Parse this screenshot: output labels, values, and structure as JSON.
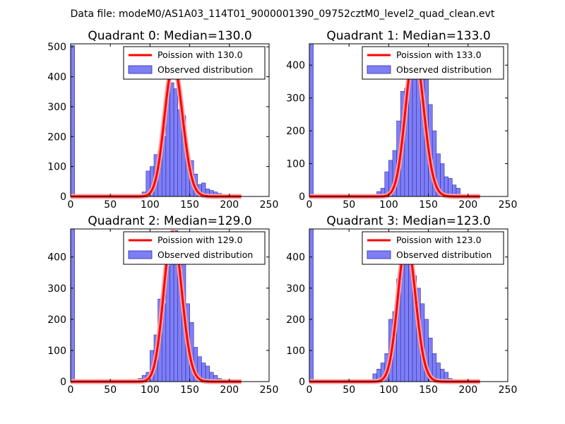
{
  "title": "Data file: modeM0/AS1A03_114T01_9000001390_09752cztM0_level2_quad_clean.evt",
  "colors": {
    "bar_fill": "#7f7ff5",
    "bar_edge": "#2a2ab0",
    "curve": "#ff0000",
    "curve_highlight": "#f7a3a3",
    "axis": "#000000"
  },
  "chart_data": [
    {
      "type": "bar",
      "title": "Quadrant 0: Median=130.0",
      "xlim": [
        0,
        250
      ],
      "ylim": [
        0,
        510
      ],
      "xticks": [
        "0",
        "50",
        "100",
        "150",
        "200",
        "250"
      ],
      "yticks": [
        "0",
        "100",
        "200",
        "300",
        "400",
        "500"
      ],
      "ytick_values": [
        0,
        100,
        200,
        300,
        400,
        500
      ],
      "bin_width": 5,
      "bin_starts": [
        0,
        85,
        90,
        95,
        100,
        105,
        110,
        115,
        120,
        125,
        130,
        135,
        140,
        145,
        150,
        155,
        160,
        165,
        170,
        175,
        180,
        185,
        190,
        195,
        200,
        205,
        210
      ],
      "values": [
        505,
        5,
        15,
        85,
        100,
        140,
        150,
        200,
        360,
        380,
        360,
        290,
        270,
        140,
        120,
        75,
        40,
        45,
        25,
        20,
        15,
        10,
        5,
        5,
        3,
        2,
        1
      ],
      "poisson_mean": 130,
      "poisson_peak": 440,
      "legend": [
        "Poission with 130.0",
        "Observed distribution"
      ]
    },
    {
      "type": "bar",
      "title": "Quadrant 1: Median=133.0",
      "xlim": [
        0,
        250
      ],
      "ylim": [
        0,
        465
      ],
      "xticks": [
        "0",
        "50",
        "100",
        "150",
        "200",
        "250"
      ],
      "yticks": [
        "0",
        "100",
        "200",
        "300",
        "400"
      ],
      "ytick_values": [
        0,
        100,
        200,
        300,
        400
      ],
      "bin_width": 5,
      "bin_starts": [
        0,
        80,
        85,
        90,
        95,
        100,
        105,
        110,
        115,
        120,
        125,
        130,
        135,
        140,
        145,
        150,
        155,
        160,
        165,
        170,
        175,
        180,
        185,
        190,
        195,
        200
      ],
      "values": [
        465,
        5,
        15,
        25,
        75,
        110,
        140,
        230,
        320,
        330,
        395,
        430,
        420,
        380,
        360,
        280,
        200,
        130,
        100,
        60,
        55,
        35,
        25,
        5,
        3,
        2
      ],
      "poisson_mean": 133,
      "poisson_peak": 440,
      "legend": [
        "Poission with 133.0",
        "Observed distribution"
      ]
    },
    {
      "type": "bar",
      "title": "Quadrant 2: Median=129.0",
      "xlim": [
        0,
        250
      ],
      "ylim": [
        0,
        490
      ],
      "xticks": [
        "0",
        "50",
        "100",
        "150",
        "200",
        "250"
      ],
      "yticks": [
        "0",
        "100",
        "200",
        "300",
        "400"
      ],
      "ytick_values": [
        0,
        100,
        200,
        300,
        400
      ],
      "bin_width": 5,
      "bin_starts": [
        0,
        80,
        85,
        90,
        95,
        100,
        105,
        110,
        115,
        120,
        125,
        130,
        135,
        140,
        145,
        150,
        155,
        160,
        165,
        170,
        175,
        180,
        185,
        190,
        195,
        200
      ],
      "values": [
        490,
        3,
        10,
        20,
        30,
        100,
        150,
        265,
        250,
        370,
        470,
        485,
        440,
        390,
        250,
        190,
        110,
        80,
        60,
        50,
        30,
        20,
        10,
        5,
        3,
        1
      ],
      "poisson_mean": 129,
      "poisson_peak": 480,
      "legend": [
        "Poission with 129.0",
        "Observed distribution"
      ]
    },
    {
      "type": "bar",
      "title": "Quadrant 3: Median=123.0",
      "xlim": [
        0,
        250
      ],
      "ylim": [
        0,
        490
      ],
      "xticks": [
        "0",
        "50",
        "100",
        "150",
        "200",
        "250"
      ],
      "yticks": [
        "0",
        "100",
        "200",
        "300",
        "400"
      ],
      "ytick_values": [
        0,
        100,
        200,
        300,
        400
      ],
      "bin_width": 5,
      "bin_starts": [
        0,
        20,
        30,
        45,
        60,
        75,
        80,
        85,
        90,
        95,
        100,
        105,
        110,
        115,
        120,
        125,
        130,
        135,
        140,
        145,
        150,
        155,
        160,
        165,
        170,
        175,
        180,
        185,
        190
      ],
      "values": [
        490,
        5,
        5,
        3,
        3,
        5,
        25,
        40,
        60,
        90,
        200,
        225,
        330,
        395,
        430,
        395,
        340,
        300,
        250,
        200,
        140,
        90,
        60,
        40,
        30,
        10,
        5,
        3,
        2
      ],
      "poisson_mean": 123,
      "poisson_peak": 450,
      "legend": [
        "Poission with 123.0",
        "Observed distribution"
      ]
    }
  ]
}
